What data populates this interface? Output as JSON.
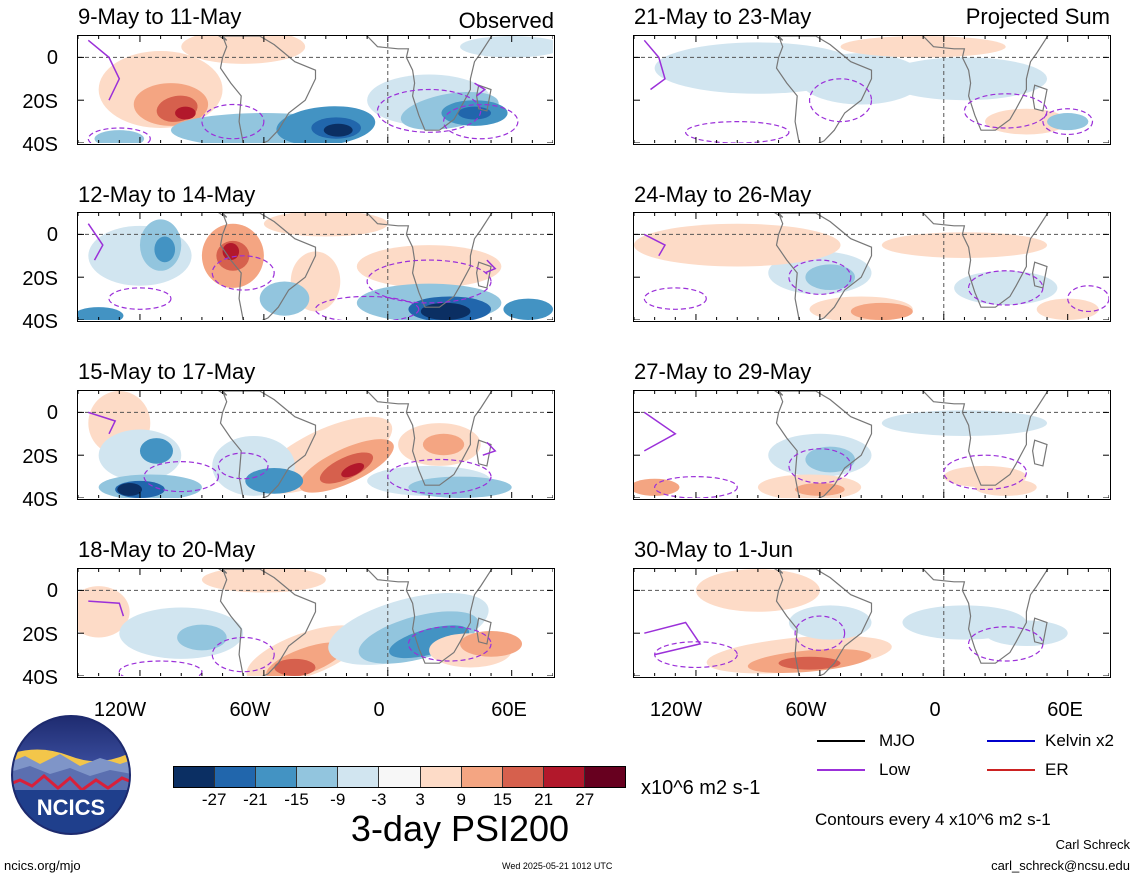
{
  "left_header": "Observed",
  "right_header": "Projected Sum",
  "panels_left": [
    {
      "title": "9-May to 11-May"
    },
    {
      "title": "12-May to 14-May"
    },
    {
      "title": "15-May to 17-May"
    },
    {
      "title": "18-May to 20-May"
    }
  ],
  "panels_right": [
    {
      "title": "21-May to 23-May"
    },
    {
      "title": "24-May to 26-May"
    },
    {
      "title": "27-May to 29-May"
    },
    {
      "title": "30-May to 1-Jun"
    }
  ],
  "yticks": [
    "0",
    "20S",
    "40S"
  ],
  "xticks": [
    "120W",
    "60W",
    "0",
    "60E"
  ],
  "colorbar": {
    "colors": [
      "#0b2f63",
      "#2166ac",
      "#4393c3",
      "#92c5de",
      "#d1e5f0",
      "#f7f7f7",
      "#fddbc7",
      "#f4a582",
      "#d6604d",
      "#b2182b",
      "#67001f"
    ],
    "tick_labels": [
      "-27",
      "-21",
      "-15",
      "-9",
      "-3",
      "3",
      "9",
      "15",
      "21",
      "27"
    ],
    "units": "x10^6 m2 s-1"
  },
  "main_title": "3-day PSI200",
  "legend": [
    {
      "label": "MJO",
      "color": "#000000"
    },
    {
      "label": "Kelvin x2",
      "color": "#0000cc"
    },
    {
      "label": "Low",
      "color": "#9b30d9"
    },
    {
      "label": "ER",
      "color": "#cc2222"
    }
  ],
  "contours_note": "Contours every 4 x10^6 m2 s-1",
  "author": "Carl Schreck",
  "email": "carl_schreck@ncsu.edu",
  "url": "ncics.org/mjo",
  "timestamp": "Wed 2025-05-21 1012 UTC",
  "logo_text": "NCICS",
  "chart_data": {
    "type": "heatmap",
    "title": "3-day PSI200",
    "units": "x10^6 m2 s-1",
    "x_axis": {
      "ticks": [
        "120W",
        "60W",
        "0",
        "60E"
      ],
      "range": [
        "150W",
        "80E"
      ]
    },
    "y_axis": {
      "ticks": [
        "0",
        "20S",
        "40S"
      ],
      "range": [
        "10N",
        "40S"
      ]
    },
    "levels": [
      -27,
      -21,
      -15,
      -9,
      -3,
      3,
      9,
      15,
      21,
      27
    ],
    "panels": [
      {
        "title": "9-May to 11-May",
        "group": "Observed"
      },
      {
        "title": "12-May to 14-May",
        "group": "Observed"
      },
      {
        "title": "15-May to 17-May",
        "group": "Observed"
      },
      {
        "title": "18-May to 20-May",
        "group": "Observed"
      },
      {
        "title": "21-May to 23-May",
        "group": "Projected Sum"
      },
      {
        "title": "24-May to 26-May",
        "group": "Projected Sum"
      },
      {
        "title": "27-May to 29-May",
        "group": "Projected Sum"
      },
      {
        "title": "30-May to 1-Jun",
        "group": "Projected Sum"
      }
    ]
  }
}
